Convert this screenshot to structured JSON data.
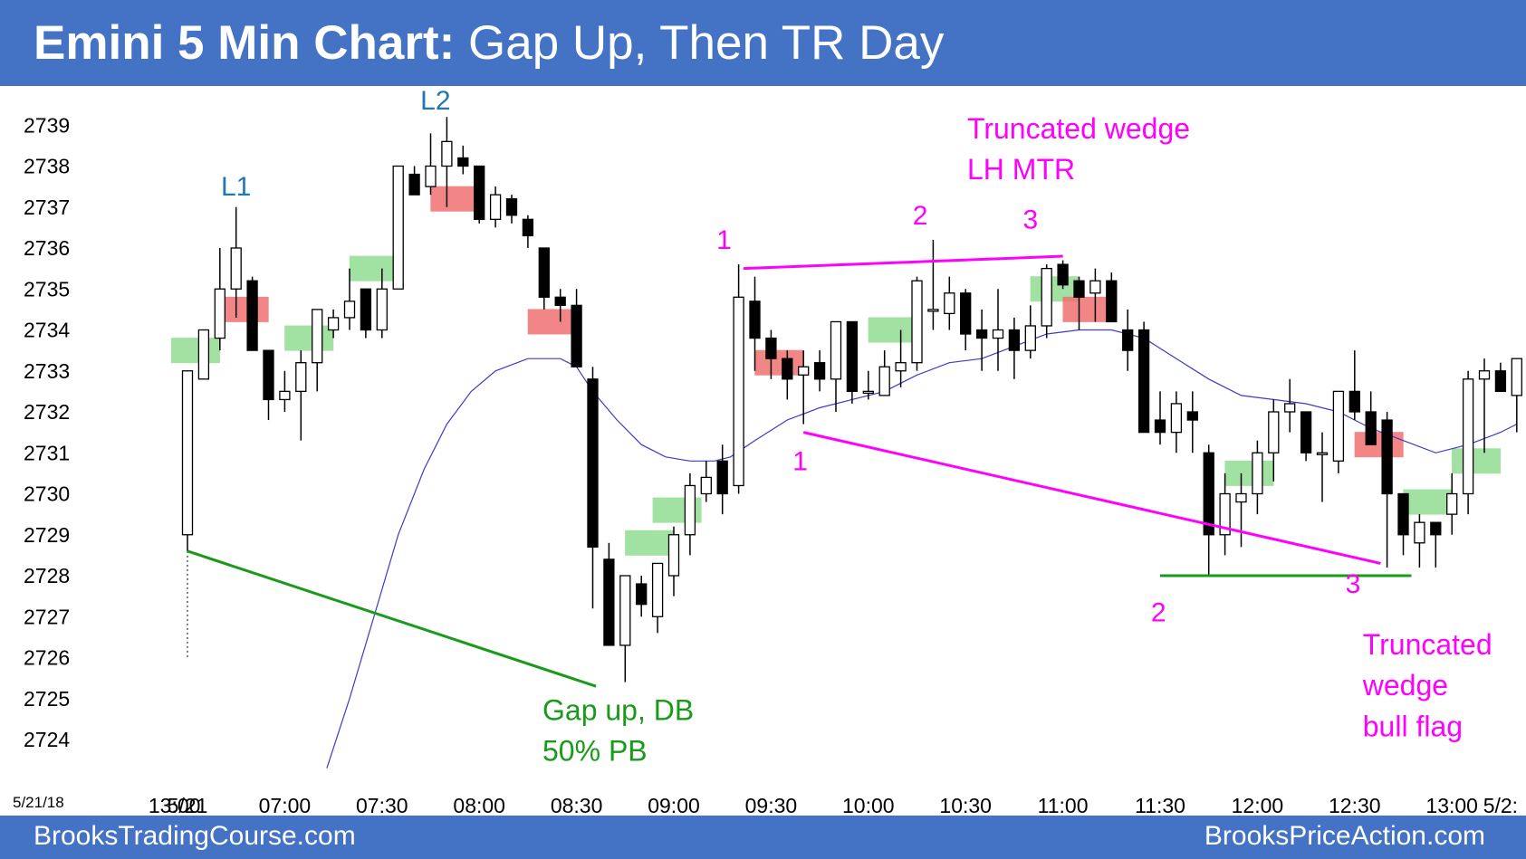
{
  "header": {
    "title_bold": "Emini 5 Min Chart:",
    "title_rest": " Gap Up, Then TR Day"
  },
  "footer": {
    "left": "BrooksTradingCourse.com",
    "right": "BrooksPriceAction.com"
  },
  "colors": {
    "header_bg": "#4472c4",
    "bull_bar": "#ffffff",
    "bear_bar": "#000000",
    "ema": "#3b3bc8",
    "magenta": "#ff00ff",
    "green_line": "#1a9a1a",
    "buy_signal": "#90dc90",
    "sell_signal": "#f07070",
    "label_blue": "#1f78b4"
  },
  "chart_data": {
    "type": "candlestick",
    "date_label": "5/21/18",
    "xlabel": "",
    "ylabel": "",
    "ylim": [
      2723.2,
      2740.2
    ],
    "y_ticks": [
      2724,
      2725,
      2726,
      2727,
      2728,
      2729,
      2730,
      2731,
      2732,
      2733,
      2734,
      2735,
      2736,
      2737,
      2738,
      2739
    ],
    "x_ticks": [
      {
        "bar": -0.8,
        "label": "13:00"
      },
      {
        "bar": 0,
        "label": "5/21"
      },
      {
        "bar": 6,
        "label": "07:00"
      },
      {
        "bar": 12,
        "label": "07:30"
      },
      {
        "bar": 18,
        "label": "08:00"
      },
      {
        "bar": 24,
        "label": "08:30"
      },
      {
        "bar": 30,
        "label": "09:00"
      },
      {
        "bar": 36,
        "label": "09:30"
      },
      {
        "bar": 42,
        "label": "10:00"
      },
      {
        "bar": 48,
        "label": "10:30"
      },
      {
        "bar": 54,
        "label": "11:00"
      },
      {
        "bar": 60,
        "label": "11:30"
      },
      {
        "bar": 66,
        "label": "12:00"
      },
      {
        "bar": 72,
        "label": "12:30"
      },
      {
        "bar": 78,
        "label": "13:00"
      },
      {
        "bar": 81,
        "label": "5/2:"
      }
    ],
    "ohlc_columns": [
      "open",
      "high",
      "low",
      "close"
    ],
    "bars": [
      [
        2729.0,
        2733.0,
        2728.6,
        2733.0
      ],
      [
        2732.8,
        2734.0,
        2732.8,
        2734.0
      ],
      [
        2733.8,
        2736.0,
        2733.5,
        2735.0
      ],
      [
        2735.0,
        2737.0,
        2734.3,
        2736.0
      ],
      [
        2735.2,
        2735.3,
        2733.5,
        2733.5
      ],
      [
        2733.5,
        2733.5,
        2731.8,
        2732.3
      ],
      [
        2732.3,
        2733.0,
        2732.0,
        2732.5
      ],
      [
        2732.5,
        2733.5,
        2731.3,
        2733.2
      ],
      [
        2733.2,
        2734.5,
        2732.5,
        2734.5
      ],
      [
        2734.0,
        2734.5,
        2733.8,
        2734.3
      ],
      [
        2734.3,
        2735.5,
        2734.0,
        2734.7
      ],
      [
        2735.0,
        2735.0,
        2733.8,
        2734.0
      ],
      [
        2734.0,
        2735.5,
        2733.8,
        2735.0
      ],
      [
        2735.0,
        2738.0,
        2735.0,
        2738.0
      ],
      [
        2737.8,
        2738.0,
        2737.3,
        2737.3
      ],
      [
        2737.5,
        2738.8,
        2737.3,
        2738.0
      ],
      [
        2738.0,
        2739.2,
        2737.0,
        2738.6
      ],
      [
        2738.2,
        2738.5,
        2737.8,
        2738.0
      ],
      [
        2738.0,
        2738.0,
        2736.6,
        2736.7
      ],
      [
        2736.7,
        2737.5,
        2736.5,
        2737.3
      ],
      [
        2737.2,
        2737.3,
        2736.6,
        2736.8
      ],
      [
        2736.7,
        2736.8,
        2736.0,
        2736.3
      ],
      [
        2736.0,
        2736.0,
        2734.5,
        2734.8
      ],
      [
        2734.8,
        2735.0,
        2734.2,
        2734.6
      ],
      [
        2734.6,
        2735.0,
        2733.1,
        2733.1
      ],
      [
        2732.8,
        2733.1,
        2727.2,
        2728.7
      ],
      [
        2728.4,
        2728.8,
        2726.3,
        2726.3
      ],
      [
        2726.3,
        2728.0,
        2725.4,
        2728.0
      ],
      [
        2727.8,
        2728.0,
        2727.0,
        2727.3
      ],
      [
        2727.0,
        2728.2,
        2726.6,
        2728.3
      ],
      [
        2728.0,
        2729.2,
        2727.5,
        2729.0
      ],
      [
        2729.0,
        2730.5,
        2728.5,
        2730.2
      ],
      [
        2730.0,
        2730.8,
        2729.8,
        2730.4
      ],
      [
        2730.8,
        2731.2,
        2729.5,
        2730.0
      ],
      [
        2730.2,
        2735.6,
        2730.0,
        2734.8
      ],
      [
        2734.7,
        2735.3,
        2733.0,
        2733.8
      ],
      [
        2733.8,
        2734.0,
        2732.8,
        2733.3
      ],
      [
        2733.3,
        2733.5,
        2732.3,
        2732.8
      ],
      [
        2732.9,
        2733.5,
        2731.7,
        2733.1
      ],
      [
        2733.2,
        2733.5,
        2732.5,
        2732.8
      ],
      [
        2732.8,
        2734.2,
        2732.0,
        2734.2
      ],
      [
        2734.2,
        2734.2,
        2732.2,
        2732.5
      ],
      [
        2732.5,
        2733.0,
        2732.3,
        2732.5
      ],
      [
        2732.4,
        2733.5,
        2732.4,
        2733.1
      ],
      [
        2733.0,
        2734.0,
        2732.6,
        2733.2
      ],
      [
        2733.2,
        2735.3,
        2733.0,
        2735.2
      ],
      [
        2734.5,
        2736.2,
        2734.0,
        2734.5
      ],
      [
        2734.4,
        2735.3,
        2734.0,
        2734.9
      ],
      [
        2734.9,
        2735.0,
        2733.5,
        2733.9
      ],
      [
        2734.0,
        2734.5,
        2733.0,
        2733.8
      ],
      [
        2733.8,
        2735.0,
        2733.0,
        2734.0
      ],
      [
        2734.0,
        2734.3,
        2732.8,
        2733.5
      ],
      [
        2733.5,
        2734.6,
        2733.3,
        2734.1
      ],
      [
        2734.1,
        2735.6,
        2733.8,
        2735.5
      ],
      [
        2735.6,
        2735.7,
        2735.0,
        2735.1
      ],
      [
        2735.2,
        2735.3,
        2734.0,
        2734.8
      ],
      [
        2734.9,
        2735.5,
        2734.2,
        2735.2
      ],
      [
        2735.2,
        2735.4,
        2734.2,
        2734.2
      ],
      [
        2734.0,
        2734.5,
        2733.0,
        2733.5
      ],
      [
        2734.0,
        2734.2,
        2731.8,
        2731.5
      ],
      [
        2731.8,
        2732.5,
        2731.2,
        2731.5
      ],
      [
        2731.5,
        2732.5,
        2731.0,
        2732.2
      ],
      [
        2732.0,
        2732.5,
        2731.0,
        2731.8
      ],
      [
        2731.0,
        2731.2,
        2728.0,
        2729.0
      ],
      [
        2729.0,
        2730.5,
        2728.5,
        2730.0
      ],
      [
        2729.8,
        2730.5,
        2728.7,
        2730.0
      ],
      [
        2730.0,
        2731.3,
        2729.5,
        2731.0
      ],
      [
        2731.0,
        2732.3,
        2730.3,
        2732.0
      ],
      [
        2732.0,
        2732.8,
        2731.5,
        2732.2
      ],
      [
        2732.0,
        2732.0,
        2730.8,
        2731.0
      ],
      [
        2731.0,
        2731.5,
        2729.8,
        2731.0
      ],
      [
        2730.8,
        2732.5,
        2730.5,
        2732.5
      ],
      [
        2732.5,
        2733.5,
        2731.8,
        2732.0
      ],
      [
        2732.0,
        2732.5,
        2731.2,
        2731.2
      ],
      [
        2731.8,
        2732.0,
        2728.2,
        2730.0
      ],
      [
        2730.0,
        2730.0,
        2728.5,
        2729.0
      ],
      [
        2728.8,
        2729.5,
        2728.2,
        2729.3
      ],
      [
        2729.3,
        2729.3,
        2728.2,
        2729.0
      ],
      [
        2729.5,
        2730.5,
        2729.0,
        2730.0
      ],
      [
        2730.0,
        2733.0,
        2729.5,
        2732.8
      ],
      [
        2732.8,
        2733.3,
        2731.0,
        2733.0
      ],
      [
        2733.0,
        2733.2,
        2732.5,
        2732.5
      ],
      [
        2732.4,
        2733.3,
        2731.5,
        2733.3
      ],
      [
        2733.2,
        2733.5,
        2732.5,
        2733.0
      ]
    ],
    "ema_20": [
      {
        "bar": 8.6,
        "value": 2723.3
      },
      {
        "bar": 10.0,
        "value": 2725.0
      },
      {
        "bar": 11.5,
        "value": 2727.0
      },
      {
        "bar": 13.0,
        "value": 2729.0
      },
      {
        "bar": 14.6,
        "value": 2730.6
      },
      {
        "bar": 16.0,
        "value": 2731.7
      },
      {
        "bar": 17.5,
        "value": 2732.5
      },
      {
        "bar": 19.0,
        "value": 2733.0
      },
      {
        "bar": 21.0,
        "value": 2733.3
      },
      {
        "bar": 23.0,
        "value": 2733.3
      },
      {
        "bar": 24.0,
        "value": 2733.1
      },
      {
        "bar": 25.0,
        "value": 2732.5
      },
      {
        "bar": 26.5,
        "value": 2731.8
      },
      {
        "bar": 28.0,
        "value": 2731.2
      },
      {
        "bar": 29.5,
        "value": 2730.9
      },
      {
        "bar": 31.0,
        "value": 2730.8
      },
      {
        "bar": 32.5,
        "value": 2730.8
      },
      {
        "bar": 33.5,
        "value": 2730.9
      },
      {
        "bar": 35.0,
        "value": 2731.3
      },
      {
        "bar": 37.0,
        "value": 2731.8
      },
      {
        "bar": 39.0,
        "value": 2732.1
      },
      {
        "bar": 41.0,
        "value": 2732.3
      },
      {
        "bar": 43.0,
        "value": 2732.5
      },
      {
        "bar": 45.0,
        "value": 2732.9
      },
      {
        "bar": 47.0,
        "value": 2733.2
      },
      {
        "bar": 49.0,
        "value": 2733.3
      },
      {
        "bar": 51.0,
        "value": 2733.6
      },
      {
        "bar": 53.0,
        "value": 2733.9
      },
      {
        "bar": 55.0,
        "value": 2734.0
      },
      {
        "bar": 57.0,
        "value": 2734.0
      },
      {
        "bar": 59.0,
        "value": 2733.8
      },
      {
        "bar": 61.0,
        "value": 2733.3
      },
      {
        "bar": 63.0,
        "value": 2732.8
      },
      {
        "bar": 65.0,
        "value": 2732.4
      },
      {
        "bar": 67.0,
        "value": 2732.3
      },
      {
        "bar": 69.0,
        "value": 2732.2
      },
      {
        "bar": 71.0,
        "value": 2732.0
      },
      {
        "bar": 73.0,
        "value": 2731.6
      },
      {
        "bar": 75.0,
        "value": 2731.3
      },
      {
        "bar": 77.0,
        "value": 2731.0
      },
      {
        "bar": 79.0,
        "value": 2731.2
      },
      {
        "bar": 81.0,
        "value": 2731.5
      },
      {
        "bar": 82.0,
        "value": 2731.7
      }
    ],
    "signals": [
      {
        "bar": 0.5,
        "type": "buy",
        "price": 2733.5
      },
      {
        "bar": 3.5,
        "type": "sell",
        "price": 2734.5
      },
      {
        "bar": 7.5,
        "type": "buy",
        "price": 2733.8
      },
      {
        "bar": 11.5,
        "type": "buy",
        "price": 2735.5
      },
      {
        "bar": 16.5,
        "type": "sell",
        "price": 2737.2
      },
      {
        "bar": 22.5,
        "type": "sell",
        "price": 2734.2
      },
      {
        "bar": 28.5,
        "type": "buy",
        "price": 2728.8
      },
      {
        "bar": 30.2,
        "type": "buy",
        "price": 2729.6
      },
      {
        "bar": 36.5,
        "type": "sell",
        "price": 2733.2
      },
      {
        "bar": 43.5,
        "type": "buy",
        "price": 2734.0
      },
      {
        "bar": 53.5,
        "type": "buy",
        "price": 2735.0
      },
      {
        "bar": 55.5,
        "type": "sell",
        "price": 2734.5
      },
      {
        "bar": 65.5,
        "type": "buy",
        "price": 2730.5
      },
      {
        "bar": 73.5,
        "type": "sell",
        "price": 2731.2
      },
      {
        "bar": 76.5,
        "type": "buy",
        "price": 2729.8
      },
      {
        "bar": 79.5,
        "type": "buy",
        "price": 2730.8
      }
    ],
    "lines": [
      {
        "color": "magenta",
        "from": [
          34.3,
          2735.5
        ],
        "to": [
          54.0,
          2735.8
        ]
      },
      {
        "color": "magenta",
        "from": [
          38.0,
          2731.5
        ],
        "to": [
          73.6,
          2728.3
        ]
      },
      {
        "color": "green",
        "from": [
          0.0,
          2728.6
        ],
        "to": [
          25.2,
          2725.3
        ]
      },
      {
        "color": "green",
        "from": [
          60.0,
          2728.0
        ],
        "to": [
          75.5,
          2728.0
        ]
      }
    ],
    "annotations": [
      {
        "text": "L1",
        "color": "blue",
        "bar": 3.0,
        "price": 2737.5
      },
      {
        "text": "L2",
        "color": "blue",
        "bar": 15.3,
        "price": 2739.6
      },
      {
        "text": "1",
        "color": "magenta",
        "bar": 33.1,
        "price": 2736.2
      },
      {
        "text": "2",
        "color": "magenta",
        "bar": 45.2,
        "price": 2736.8
      },
      {
        "text": "3",
        "color": "magenta",
        "bar": 52.0,
        "price": 2736.7
      },
      {
        "text": "1",
        "color": "magenta",
        "bar": 37.8,
        "price": 2730.8
      },
      {
        "text": "2",
        "color": "magenta",
        "bar": 59.9,
        "price": 2727.1
      },
      {
        "text": "3",
        "color": "magenta",
        "bar": 71.9,
        "price": 2727.8
      },
      {
        "text": "Truncated wedge",
        "color": "magenta",
        "bar": 48.1,
        "price": 2738.9
      },
      {
        "text": "LH MTR",
        "color": "magenta",
        "bar": 48.1,
        "price": 2737.9
      },
      {
        "text": "Truncated",
        "color": "magenta",
        "bar": 72.5,
        "price": 2726.3
      },
      {
        "text": "wedge",
        "color": "magenta",
        "bar": 72.5,
        "price": 2725.3
      },
      {
        "text": "bull flag",
        "color": "magenta",
        "bar": 72.5,
        "price": 2724.3
      },
      {
        "text": "Gap up, DB",
        "color": "green",
        "bar": 21.9,
        "price": 2724.7
      },
      {
        "text": "50% PB",
        "color": "green",
        "bar": 21.9,
        "price": 2723.7
      }
    ]
  }
}
